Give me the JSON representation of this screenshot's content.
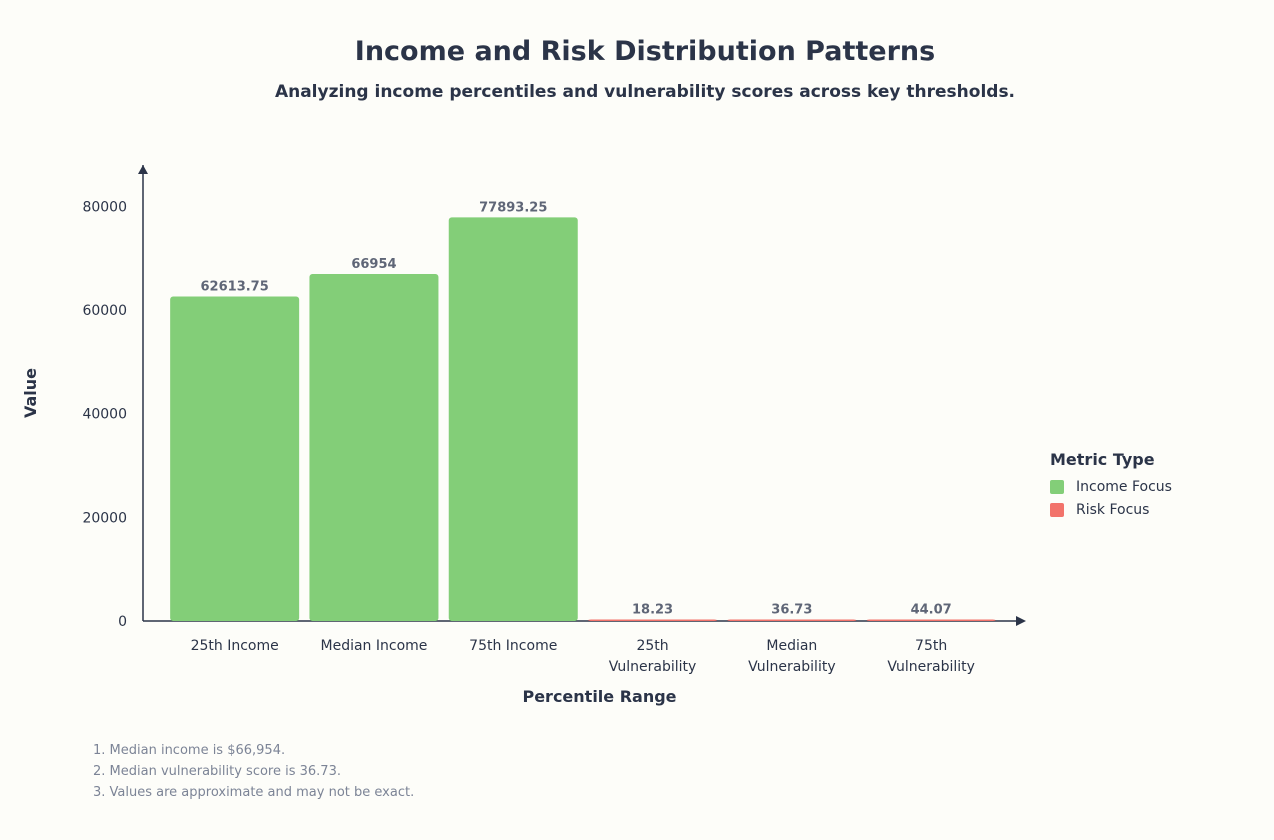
{
  "chart_data": {
    "type": "bar",
    "title": "Income and Risk Distribution Patterns",
    "subtitle": "Analyzing income percentiles and vulnerability scores across key thresholds.",
    "xlabel": "Percentile Range",
    "ylabel": "Value",
    "categories": [
      [
        "25th Income"
      ],
      [
        "Median Income"
      ],
      [
        "75th Income"
      ],
      [
        "25th",
        "Vulnerability"
      ],
      [
        "Median",
        "Vulnerability"
      ],
      [
        "75th",
        "Vulnerability"
      ]
    ],
    "values": [
      62613.75,
      66954,
      77893.25,
      18.23,
      36.73,
      44.07
    ],
    "value_labels": [
      "62613.75",
      "66954",
      "77893.25",
      "18.23",
      "36.73",
      "44.07"
    ],
    "groups": [
      "Income Focus",
      "Income Focus",
      "Income Focus",
      "Risk Focus",
      "Risk Focus",
      "Risk Focus"
    ],
    "ylim": [
      0,
      88000
    ],
    "yticks": [
      0,
      20000,
      40000,
      60000,
      80000
    ],
    "legend": {
      "title": "Metric Type",
      "position": "right",
      "items": [
        {
          "label": "Income Focus",
          "color": "#83ce78"
        },
        {
          "label": "Risk Focus",
          "color": "#f2736b"
        }
      ]
    },
    "grid": false
  },
  "notes": [
    "1. Median income is $66,954.",
    "2. Median vulnerability score is 36.73.",
    "3. Values are approximate and may not be exact."
  ]
}
